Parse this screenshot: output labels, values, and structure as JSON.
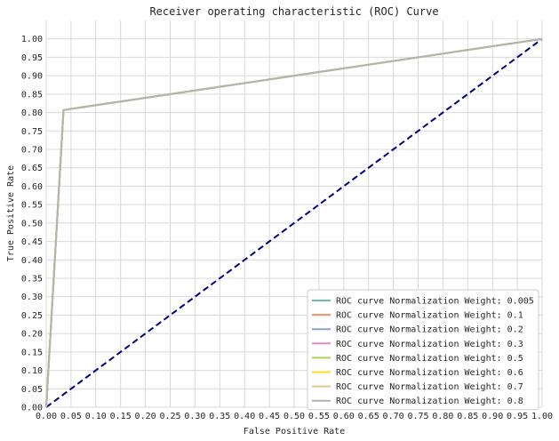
{
  "chart_data": {
    "type": "line",
    "title": "Receiver operating characteristic (ROC) Curve",
    "xlabel": "False Positive Rate",
    "ylabel": "True Positive Rate",
    "xlim": [
      0,
      1
    ],
    "ylim": [
      0,
      1.05
    ],
    "grid": true,
    "legend_position": "lower right",
    "x_ticks": [
      "0.00",
      "0.05",
      "0.10",
      "0.15",
      "0.20",
      "0.25",
      "0.30",
      "0.35",
      "0.40",
      "0.45",
      "0.50",
      "0.55",
      "0.60",
      "0.65",
      "0.70",
      "0.75",
      "0.80",
      "0.85",
      "0.90",
      "0.95",
      "1.00"
    ],
    "y_ticks": [
      "0.00",
      "0.05",
      "0.10",
      "0.15",
      "0.20",
      "0.25",
      "0.30",
      "0.35",
      "0.40",
      "0.45",
      "0.50",
      "0.55",
      "0.60",
      "0.65",
      "0.70",
      "0.75",
      "0.80",
      "0.85",
      "0.90",
      "0.95",
      "1.00"
    ],
    "series": [
      {
        "name": "ROC curve Normalization Weight: 0.005",
        "color": "#66c2a5",
        "x": [
          0,
          0.035,
          1
        ],
        "y": [
          0,
          0.807,
          1
        ]
      },
      {
        "name": "ROC curve Normalization Weight: 0.1",
        "color": "#fc8d62",
        "x": [
          0,
          0.035,
          1
        ],
        "y": [
          0,
          0.807,
          1
        ]
      },
      {
        "name": "ROC curve Normalization Weight: 0.2",
        "color": "#8da0cb",
        "x": [
          0,
          0.035,
          1
        ],
        "y": [
          0,
          0.807,
          1
        ]
      },
      {
        "name": "ROC curve Normalization Weight: 0.3",
        "color": "#e78ac3",
        "x": [
          0,
          0.035,
          1
        ],
        "y": [
          0,
          0.807,
          1
        ]
      },
      {
        "name": "ROC curve Normalization Weight: 0.5",
        "color": "#a6d854",
        "x": [
          0,
          0.035,
          1
        ],
        "y": [
          0,
          0.807,
          1
        ]
      },
      {
        "name": "ROC curve Normalization Weight: 0.6",
        "color": "#ffd92f",
        "x": [
          0,
          0.035,
          1
        ],
        "y": [
          0,
          0.807,
          1
        ]
      },
      {
        "name": "ROC curve Normalization Weight: 0.7",
        "color": "#e5c494",
        "x": [
          0,
          0.035,
          1
        ],
        "y": [
          0,
          0.807,
          1
        ]
      },
      {
        "name": "ROC curve Normalization Weight: 0.8",
        "color": "#b3b3b3",
        "x": [
          0,
          0.035,
          1
        ],
        "y": [
          0,
          0.807,
          1
        ]
      }
    ],
    "reference_line": {
      "x": [
        0,
        1
      ],
      "y": [
        0,
        1
      ],
      "color": "#000080",
      "style": "dashed"
    }
  }
}
